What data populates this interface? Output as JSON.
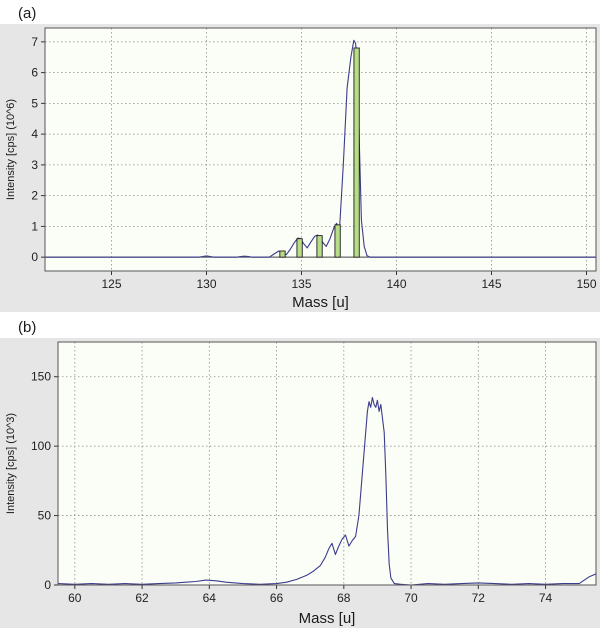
{
  "panels": [
    {
      "label": "(a)"
    },
    {
      "label": "(b)"
    }
  ],
  "colors": {
    "panel_background": "#e6e6e6",
    "plot_background": "#fbfdf7",
    "grid": "#8c8c8c",
    "profile_line": "#3c3c8c",
    "stick_fill": "#b7dd86",
    "stick_outline": "#1e1e1e"
  },
  "chart_data": [
    {
      "type": "line",
      "title": "",
      "xlabel": "Mass [u]",
      "ylabel": "Intensity [cps] (10^6)",
      "xlim": [
        121.5,
        150.5
      ],
      "ylim": [
        -0.45,
        7.45
      ],
      "xticks": [
        125,
        130,
        135,
        140,
        145,
        150
      ],
      "yticks": [
        0,
        1,
        2,
        3,
        4,
        5,
        6,
        7
      ],
      "grid": true,
      "legend": "none",
      "series": [
        {
          "kind": "profile",
          "x": [
            121.5,
            129.6,
            129.8,
            130.0,
            130.2,
            130.4,
            131.6,
            131.8,
            132.0,
            132.2,
            132.4,
            133.3,
            133.6,
            133.8,
            134.0,
            134.2,
            134.4,
            134.6,
            134.8,
            134.95,
            135.1,
            135.3,
            135.5,
            135.7,
            135.85,
            136.0,
            136.15,
            136.3,
            136.5,
            136.7,
            136.85,
            137.0,
            137.2,
            137.4,
            137.6,
            137.75,
            137.85,
            137.95,
            138.05,
            138.15,
            138.3,
            138.45,
            138.6,
            150.5
          ],
          "y": [
            0,
            0,
            0.02,
            0.04,
            0.02,
            0,
            0,
            0.02,
            0.03,
            0.02,
            0,
            0,
            0.12,
            0.2,
            0.15,
            0.08,
            0.25,
            0.45,
            0.62,
            0.6,
            0.45,
            0.3,
            0.5,
            0.68,
            0.72,
            0.6,
            0.45,
            0.35,
            0.6,
            0.95,
            1.1,
            0.9,
            3.0,
            5.5,
            6.5,
            7.05,
            6.95,
            6.3,
            3.5,
            1.2,
            0.35,
            0.05,
            0,
            0
          ]
        },
        {
          "kind": "sticks",
          "x": [
            134.0,
            134.9,
            135.95,
            136.9,
            137.9
          ],
          "y": [
            0.2,
            0.6,
            0.7,
            1.05,
            6.8
          ]
        }
      ]
    },
    {
      "type": "line",
      "title": "",
      "xlabel": "Mass [u]",
      "ylabel": "Intensity [cps] (10^3)",
      "xlim": [
        59.5,
        75.5
      ],
      "ylim": [
        0,
        175
      ],
      "xticks": [
        60,
        62,
        64,
        66,
        68,
        70,
        72,
        74
      ],
      "yticks": [
        0,
        50,
        100,
        150
      ],
      "grid": true,
      "legend": "none",
      "series": [
        {
          "kind": "profile",
          "x": [
            59.5,
            60.0,
            60.5,
            61.0,
            61.5,
            62.0,
            62.5,
            63.0,
            63.3,
            63.6,
            63.9,
            64.2,
            64.5,
            65.0,
            65.5,
            66.0,
            66.3,
            66.6,
            66.9,
            67.1,
            67.3,
            67.45,
            67.55,
            67.65,
            67.75,
            67.85,
            67.95,
            68.05,
            68.15,
            68.25,
            68.35,
            68.45,
            68.55,
            68.65,
            68.7,
            68.75,
            68.8,
            68.85,
            68.9,
            68.95,
            69.0,
            69.05,
            69.1,
            69.15,
            69.2,
            69.25,
            69.3,
            69.35,
            69.4,
            69.5,
            69.7,
            70.0,
            70.5,
            71.0,
            71.5,
            72.0,
            72.5,
            73.0,
            73.5,
            74.0,
            74.5,
            75.0,
            75.3,
            75.5
          ],
          "y": [
            1,
            0.5,
            1,
            0.5,
            1,
            0.5,
            1,
            1.5,
            2,
            2.5,
            3.5,
            3,
            2,
            1,
            0.5,
            1,
            2,
            4,
            7,
            10,
            14,
            20,
            26,
            30,
            22,
            28,
            33,
            36,
            28,
            32,
            35,
            50,
            80,
            110,
            125,
            132,
            128,
            135,
            130,
            128,
            133,
            125,
            130,
            120,
            110,
            80,
            40,
            15,
            5,
            1,
            0.5,
            0,
            1,
            0.5,
            1,
            1.5,
            1,
            0.5,
            1,
            0.5,
            1,
            1,
            6,
            8
          ]
        }
      ]
    }
  ]
}
